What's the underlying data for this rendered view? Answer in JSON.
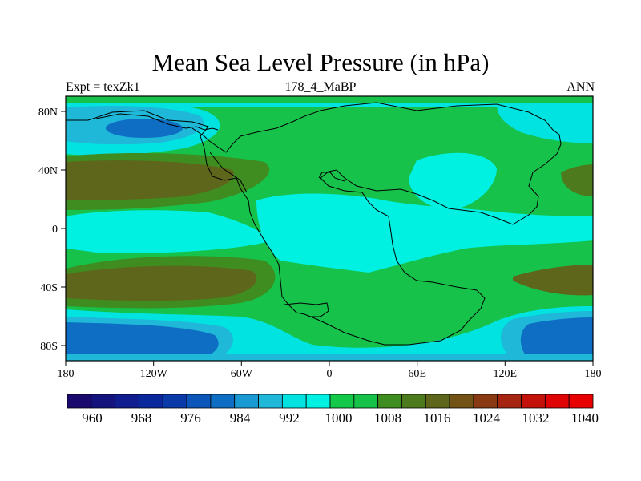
{
  "title": "Mean Sea Level Pressure (in hPa)",
  "subtitle_left": "Expt = texZk1",
  "subtitle_center": "178_4_MaBP",
  "subtitle_right": "ANN",
  "chart_data": {
    "type": "heatmap",
    "variable": "Mean Sea Level Pressure",
    "units": "hPa",
    "x_ticks": [
      "180",
      "120W",
      "60W",
      "0",
      "60E",
      "120E",
      "180"
    ],
    "y_ticks": [
      "80N",
      "40N",
      "0",
      "40S",
      "80S"
    ],
    "lon_range": [
      -180,
      180
    ],
    "lat_range": [
      -90,
      90
    ],
    "colorbar": {
      "levels": [
        960,
        964,
        968,
        972,
        976,
        980,
        984,
        988,
        992,
        996,
        1000,
        1004,
        1008,
        1012,
        1016,
        1020,
        1024,
        1028,
        1032,
        1036,
        1040
      ],
      "labels": [
        "960",
        "968",
        "976",
        "984",
        "992",
        "1000",
        "1008",
        "1016",
        "1024",
        "1032",
        "1040"
      ],
      "colors": [
        "#1a0a6e",
        "#15137e",
        "#0f1d8e",
        "#0a279c",
        "#0a3aa8",
        "#0b56b8",
        "#0d6ec4",
        "#1a9ad2",
        "#1fb8d8",
        "#00e3e0",
        "#00f0e2",
        "#14c84a",
        "#17c24a",
        "#3f8c20",
        "#4e7a1e",
        "#5d661a",
        "#735216",
        "#8a3a12",
        "#a52510",
        "#c2120a",
        "#df0505",
        "#e80000"
      ]
    },
    "field_bands": [
      {
        "lat_from": 90,
        "lat_to": 78,
        "value": "996-1000"
      },
      {
        "lat_from": 78,
        "lat_to": 58,
        "value": "992-996 with low ~988 near 150W"
      },
      {
        "lat_from": 58,
        "lat_to": 45,
        "value": "1000-1004"
      },
      {
        "lat_from": 45,
        "lat_to": 20,
        "value": "1008-1016 high ~1016 near 150W"
      },
      {
        "lat_from": 20,
        "lat_to": -15,
        "value": "1000-1008"
      },
      {
        "lat_from": -15,
        "lat_to": -50,
        "value": "1008-1016 high ~1016 near 150W and 150E"
      },
      {
        "lat_from": -50,
        "lat_to": -62,
        "value": "1000-1004"
      },
      {
        "lat_from": -62,
        "lat_to": -90,
        "value": "984-992 low near 150W and 150E"
      }
    ]
  }
}
